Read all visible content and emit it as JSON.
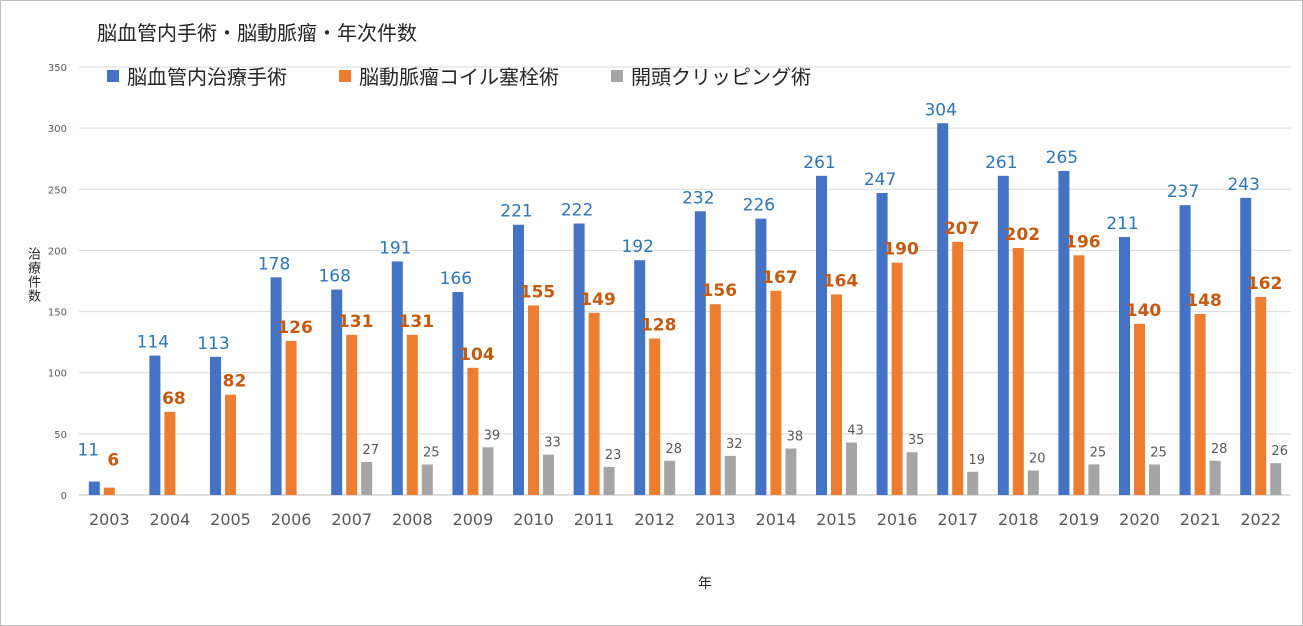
{
  "chart_data": {
    "type": "bar",
    "title": "脳血管内手術・脳動脈瘤・年次件数",
    "xlabel": "年",
    "ylabel": "治療件数",
    "ylim": [
      0,
      350
    ],
    "yticks": [
      "0",
      "50",
      "100",
      "150",
      "200",
      "250",
      "300",
      "350"
    ],
    "grid": true,
    "legend_position": "top",
    "categories": [
      "2003",
      "2004",
      "2005",
      "2006",
      "2007",
      "2008",
      "2009",
      "2010",
      "2011",
      "2012",
      "2013",
      "2014",
      "2015",
      "2016",
      "2017",
      "2018",
      "2019",
      "2020",
      "2021",
      "2022"
    ],
    "series": [
      {
        "name": "脳血管内治療手術",
        "color": "#4472c4",
        "label_color": "#2e75b6",
        "values": [
          11,
          114,
          113,
          178,
          168,
          191,
          166,
          221,
          222,
          192,
          232,
          226,
          261,
          247,
          304,
          261,
          265,
          211,
          237,
          243
        ],
        "labels": [
          "11",
          "114",
          "113",
          "178",
          "168",
          "191",
          "166",
          "221",
          "222",
          "192",
          "232",
          "226",
          "261",
          "247",
          "304",
          "261",
          "265",
          "211",
          "237",
          "243"
        ]
      },
      {
        "name": "脳動脈瘤コイル塞栓術",
        "color": "#ed7d31",
        "label_color": "#c55a11",
        "values": [
          6,
          68,
          82,
          126,
          131,
          131,
          104,
          155,
          149,
          128,
          156,
          167,
          164,
          190,
          207,
          202,
          196,
          140,
          148,
          162
        ],
        "labels": [
          "6",
          "68",
          "82",
          "126",
          "131",
          "131",
          "104",
          "155",
          "149",
          "128",
          "156",
          "167",
          "164",
          "190",
          "207",
          "202",
          "196",
          "140",
          "148",
          "162"
        ]
      },
      {
        "name": "開頭クリッピング術",
        "color": "#a5a5a5",
        "label_color": "#595959",
        "values": [
          null,
          null,
          null,
          null,
          27,
          25,
          39,
          33,
          23,
          28,
          32,
          38,
          43,
          35,
          19,
          20,
          25,
          25,
          28,
          26
        ],
        "labels": [
          "",
          "",
          "",
          "",
          "27",
          "25",
          "39",
          "33",
          "23",
          "28",
          "32",
          "38",
          "43",
          "35",
          "19",
          "20",
          "25",
          "25",
          "28",
          "26"
        ]
      }
    ]
  }
}
